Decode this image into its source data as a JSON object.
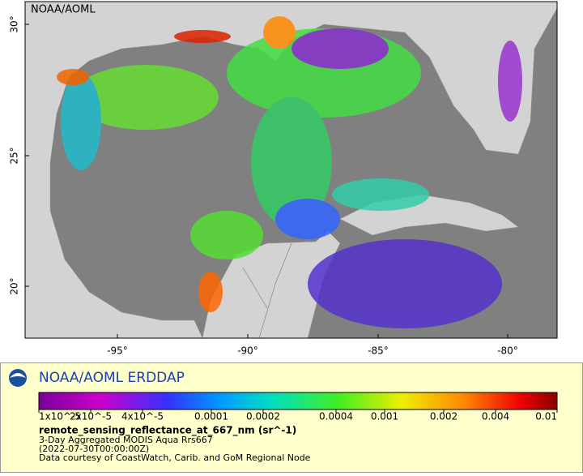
{
  "map": {
    "source_label": "NOAA/AOML",
    "lat_ticks": [
      "20°",
      "25°",
      "30°"
    ],
    "lon_ticks": [
      "-95°",
      "-90°",
      "-85°",
      "-80°"
    ]
  },
  "legend": {
    "title": "NOAA/AOML ERDDAP",
    "colorbar_ticks": [
      "1x10^-5",
      "2x10^-5",
      "4x10^-5",
      "0.0001",
      "0.0002",
      "0.0004",
      "0.001",
      "0.002",
      "0.004",
      "0.01"
    ],
    "variable": "remote_sensing_reflectance_at_667_nm (sr^-1)",
    "lines": [
      "3-Day Aggregated MODIS Aqua Rrs667",
      "(2022-07-30T00:00:00Z)",
      "Data courtesy of CoastWatch, Carib. and GoM Regional Node"
    ]
  }
}
